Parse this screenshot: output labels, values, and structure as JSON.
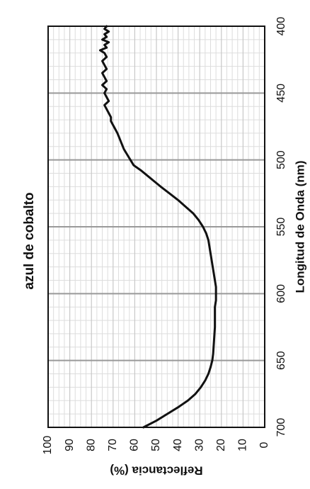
{
  "chart_data": {
    "type": "line",
    "orientation": "rotated-90-clockwise",
    "title": "azul de cobalto",
    "xlabel": "Longitud de Onda (nm)",
    "ylabel": "Reflectancia (%)",
    "xlim": [
      400,
      700
    ],
    "ylim": [
      0,
      100
    ],
    "x_ticks": [
      "400",
      "450",
      "500",
      "550",
      "600",
      "650",
      "700"
    ],
    "y_ticks": [
      "0",
      "10",
      "20",
      "30",
      "40",
      "50",
      "60",
      "70",
      "80",
      "90",
      "100"
    ],
    "grid": true,
    "legend": "none",
    "line_color": "#111111",
    "series": [
      {
        "x": [
          400,
          402,
          404,
          406,
          408,
          410,
          412,
          414,
          416,
          418,
          420,
          423,
          426,
          429,
          432,
          435,
          438,
          441,
          444,
          447,
          450,
          453,
          456,
          459,
          462,
          465,
          468,
          471,
          474,
          477,
          480,
          484,
          488,
          492,
          496,
          500,
          504,
          508,
          512,
          516,
          520,
          525,
          530,
          535,
          540,
          545,
          550,
          555,
          560,
          565,
          570,
          575,
          580,
          585,
          590,
          595,
          600,
          605,
          610,
          615,
          620,
          625,
          630,
          635,
          640,
          645,
          650,
          655,
          660,
          665,
          670,
          675,
          680,
          685,
          690,
          695,
          700
        ],
        "y": [
          73,
          74,
          72,
          74,
          73,
          75,
          72,
          74,
          73,
          76,
          74,
          73,
          75,
          74,
          73,
          75,
          74,
          73,
          75,
          73,
          74,
          73,
          72,
          74,
          73,
          72,
          71,
          71,
          70,
          69,
          68,
          67,
          66,
          65,
          63.5,
          62,
          60.5,
          57,
          54,
          51,
          48,
          44,
          40,
          36.5,
          33,
          30.5,
          28.5,
          27,
          26,
          25.5,
          25,
          24.5,
          24,
          23.5,
          23,
          22.5,
          22.5,
          22.5,
          23,
          23,
          23,
          23,
          23.2,
          23.4,
          23.6,
          23.8,
          24.2,
          25,
          26,
          27.5,
          29.5,
          32,
          35.5,
          40,
          45,
          50,
          56
        ]
      }
    ]
  }
}
